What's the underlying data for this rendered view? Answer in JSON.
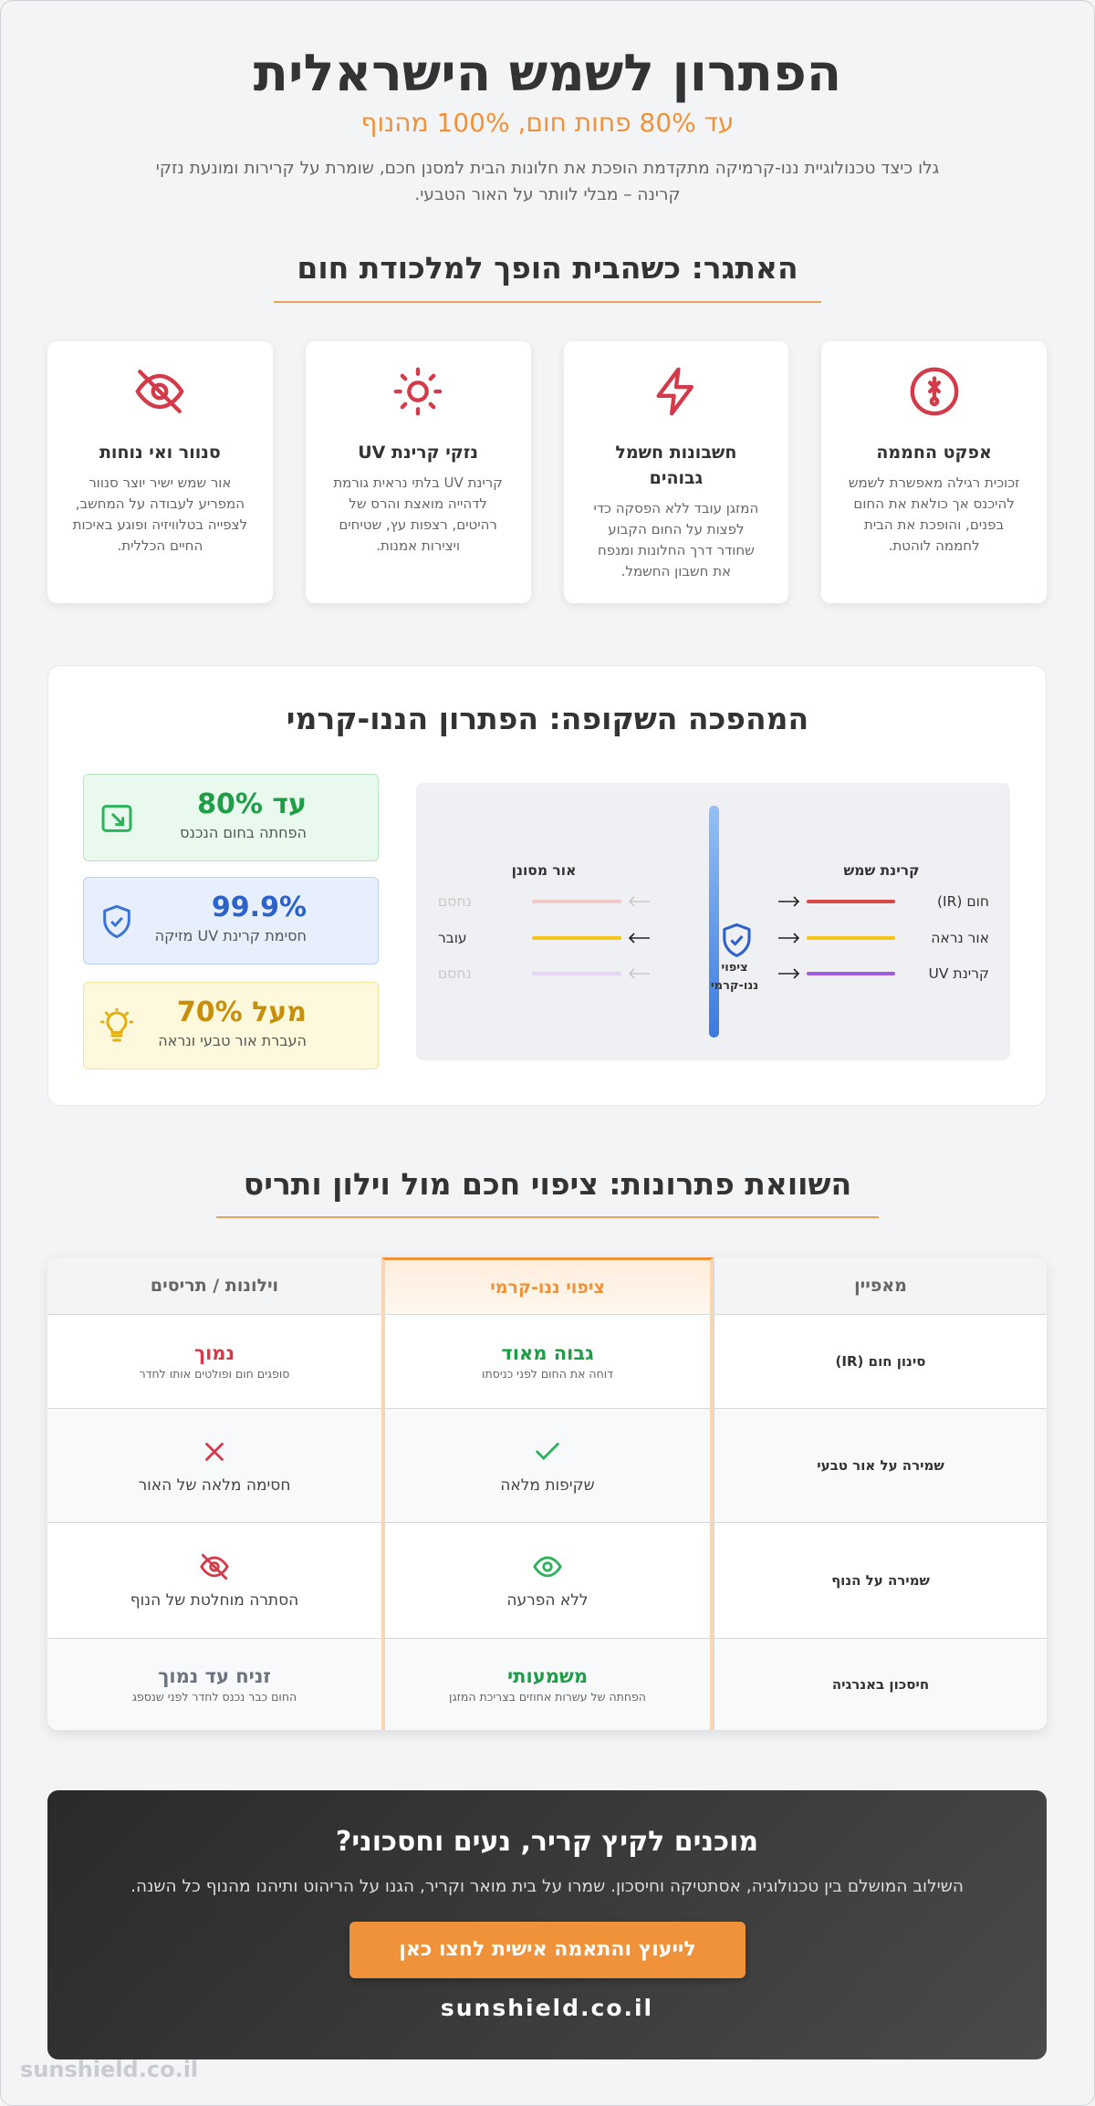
{
  "header": {
    "title": "הפתרון לשמש הישראלית",
    "subtitle": "עד 80% פחות חום, 100% מהנוף",
    "intro": "גלו כיצד טכנולוגיית ננו-קרמיקה מתקדמת הופכת את חלונות הבית למסנן חכם, שומרת על קרירות ומונעת נזקי קרינה – מבלי לוותר על האור הטבעי."
  },
  "challenge": {
    "heading": "האתגר: כשהבית הופך למלכודת חום",
    "cards": [
      {
        "title": "אפקט החממה",
        "text": "זכוכית רגילה מאפשרת לשמש להיכנס אך כולאת את החום בפנים, והופכת את הבית לחממה לוהטת."
      },
      {
        "title": "חשבונות חשמל גבוהים",
        "text": "המזגן עובד ללא הפסקה כדי לפצות על החום הקבוע שחודר דרך החלונות ומנפח את חשבון החשמל."
      },
      {
        "title": "נזקי קרינת UV",
        "text": "קרינת UV בלתי נראית גורמת לדהייה מואצת והרס של רהיטים, רצפות עץ, שטיחים ויצירות אמנות."
      },
      {
        "title": "סנוור ואי נוחות",
        "text": "אור שמש ישיר יוצר סנוור המפריע לעבודה על המחשב, לצפייה בטלוויזיה ופוגע באיכות החיים הכללית."
      }
    ]
  },
  "solution": {
    "heading": "המהפכה השקופה: הפתרון הננו-קרמי",
    "stats": [
      {
        "value": "עד 80%",
        "label": "הפחתה בחום הנכנס"
      },
      {
        "value": "99.9%",
        "label": "חסימת קרינת UV מזיקה"
      },
      {
        "value": "מעל 70%",
        "label": "העברת אור טבעי ונראה"
      }
    ],
    "diagram": {
      "incoming_heading": "קרינת שמש",
      "outgoing_heading": "אור מסונן",
      "coating": "ציפוי ננו-קרמי",
      "incoming": [
        "חום (IR)",
        "אור נראה",
        "קרינת UV"
      ],
      "outgoing": [
        "נחסם",
        "עובר",
        "נחסם"
      ]
    }
  },
  "comparison": {
    "heading": "השוואת פתרונות: ציפוי חכם מול וילון ותריס",
    "columns": [
      "מאפיין",
      "ציפוי ננו-קרמי",
      "וילונות / תריסים"
    ],
    "rows": [
      {
        "feature": "סינון חום (IR)",
        "nano": {
          "title": "גבוה מאוד",
          "note": "דוחה את החום לפני כניסתו"
        },
        "curtains": {
          "title": "נמוך",
          "note": "סופגים חום ופולטים אותו לחדר"
        }
      },
      {
        "feature": "שמירה על אור טבעי",
        "nano": {
          "text": "שקיפות מלאה"
        },
        "curtains": {
          "text": "חסימה מלאה של האור"
        }
      },
      {
        "feature": "שמירה על הנוף",
        "nano": {
          "text": "ללא הפרעה"
        },
        "curtains": {
          "text": "הסתרה מוחלטת של הנוף"
        }
      },
      {
        "feature": "חיסכון באנרגיה",
        "nano": {
          "title": "משמעותי",
          "note": "הפחתה של עשרות אחוזים בצריכת המזגן"
        },
        "curtains": {
          "title": "זניח עד נמוך",
          "note": "החום כבר נכנס לחדר לפני שנספג"
        }
      }
    ]
  },
  "cta": {
    "title": "מוכנים לקיץ קריר, נעים וחסכוני?",
    "text": "השילוב המושלם בין טכנולוגיה, אסתטיקה וחיסכון. שמרו על בית מואר וקריר, הגנו על הריהוט ותיהנו מהנוף כל השנה.",
    "button": "לייעוץ והתאמה אישית לחצו כאן",
    "url": "sunshield.co.il"
  },
  "watermark": "sunshield.co.il"
}
